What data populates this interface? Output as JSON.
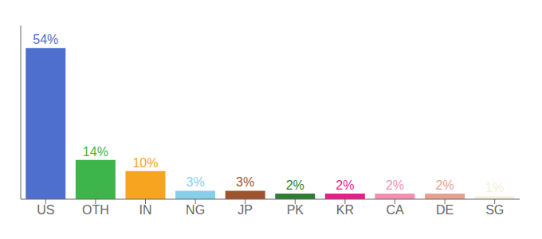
{
  "chart_data": {
    "type": "bar",
    "categories": [
      "US",
      "OTH",
      "IN",
      "NG",
      "JP",
      "PK",
      "KR",
      "CA",
      "DE",
      "SG"
    ],
    "values": [
      54,
      14,
      10,
      3,
      3,
      2,
      2,
      2,
      2,
      1
    ],
    "value_labels": [
      "54%",
      "14%",
      "10%",
      "3%",
      "3%",
      "2%",
      "2%",
      "2%",
      "2%",
      "1%"
    ],
    "colors": [
      "#4f6fcf",
      "#3db54a",
      "#f7a520",
      "#87ceeb",
      "#a0522d",
      "#2e7d32",
      "#e91e8c",
      "#f48fb1",
      "#e8a090",
      "#f5f0d8"
    ],
    "ylim": [
      0,
      62
    ],
    "data_labels": true,
    "tick_labels": "x",
    "grid": false
  }
}
